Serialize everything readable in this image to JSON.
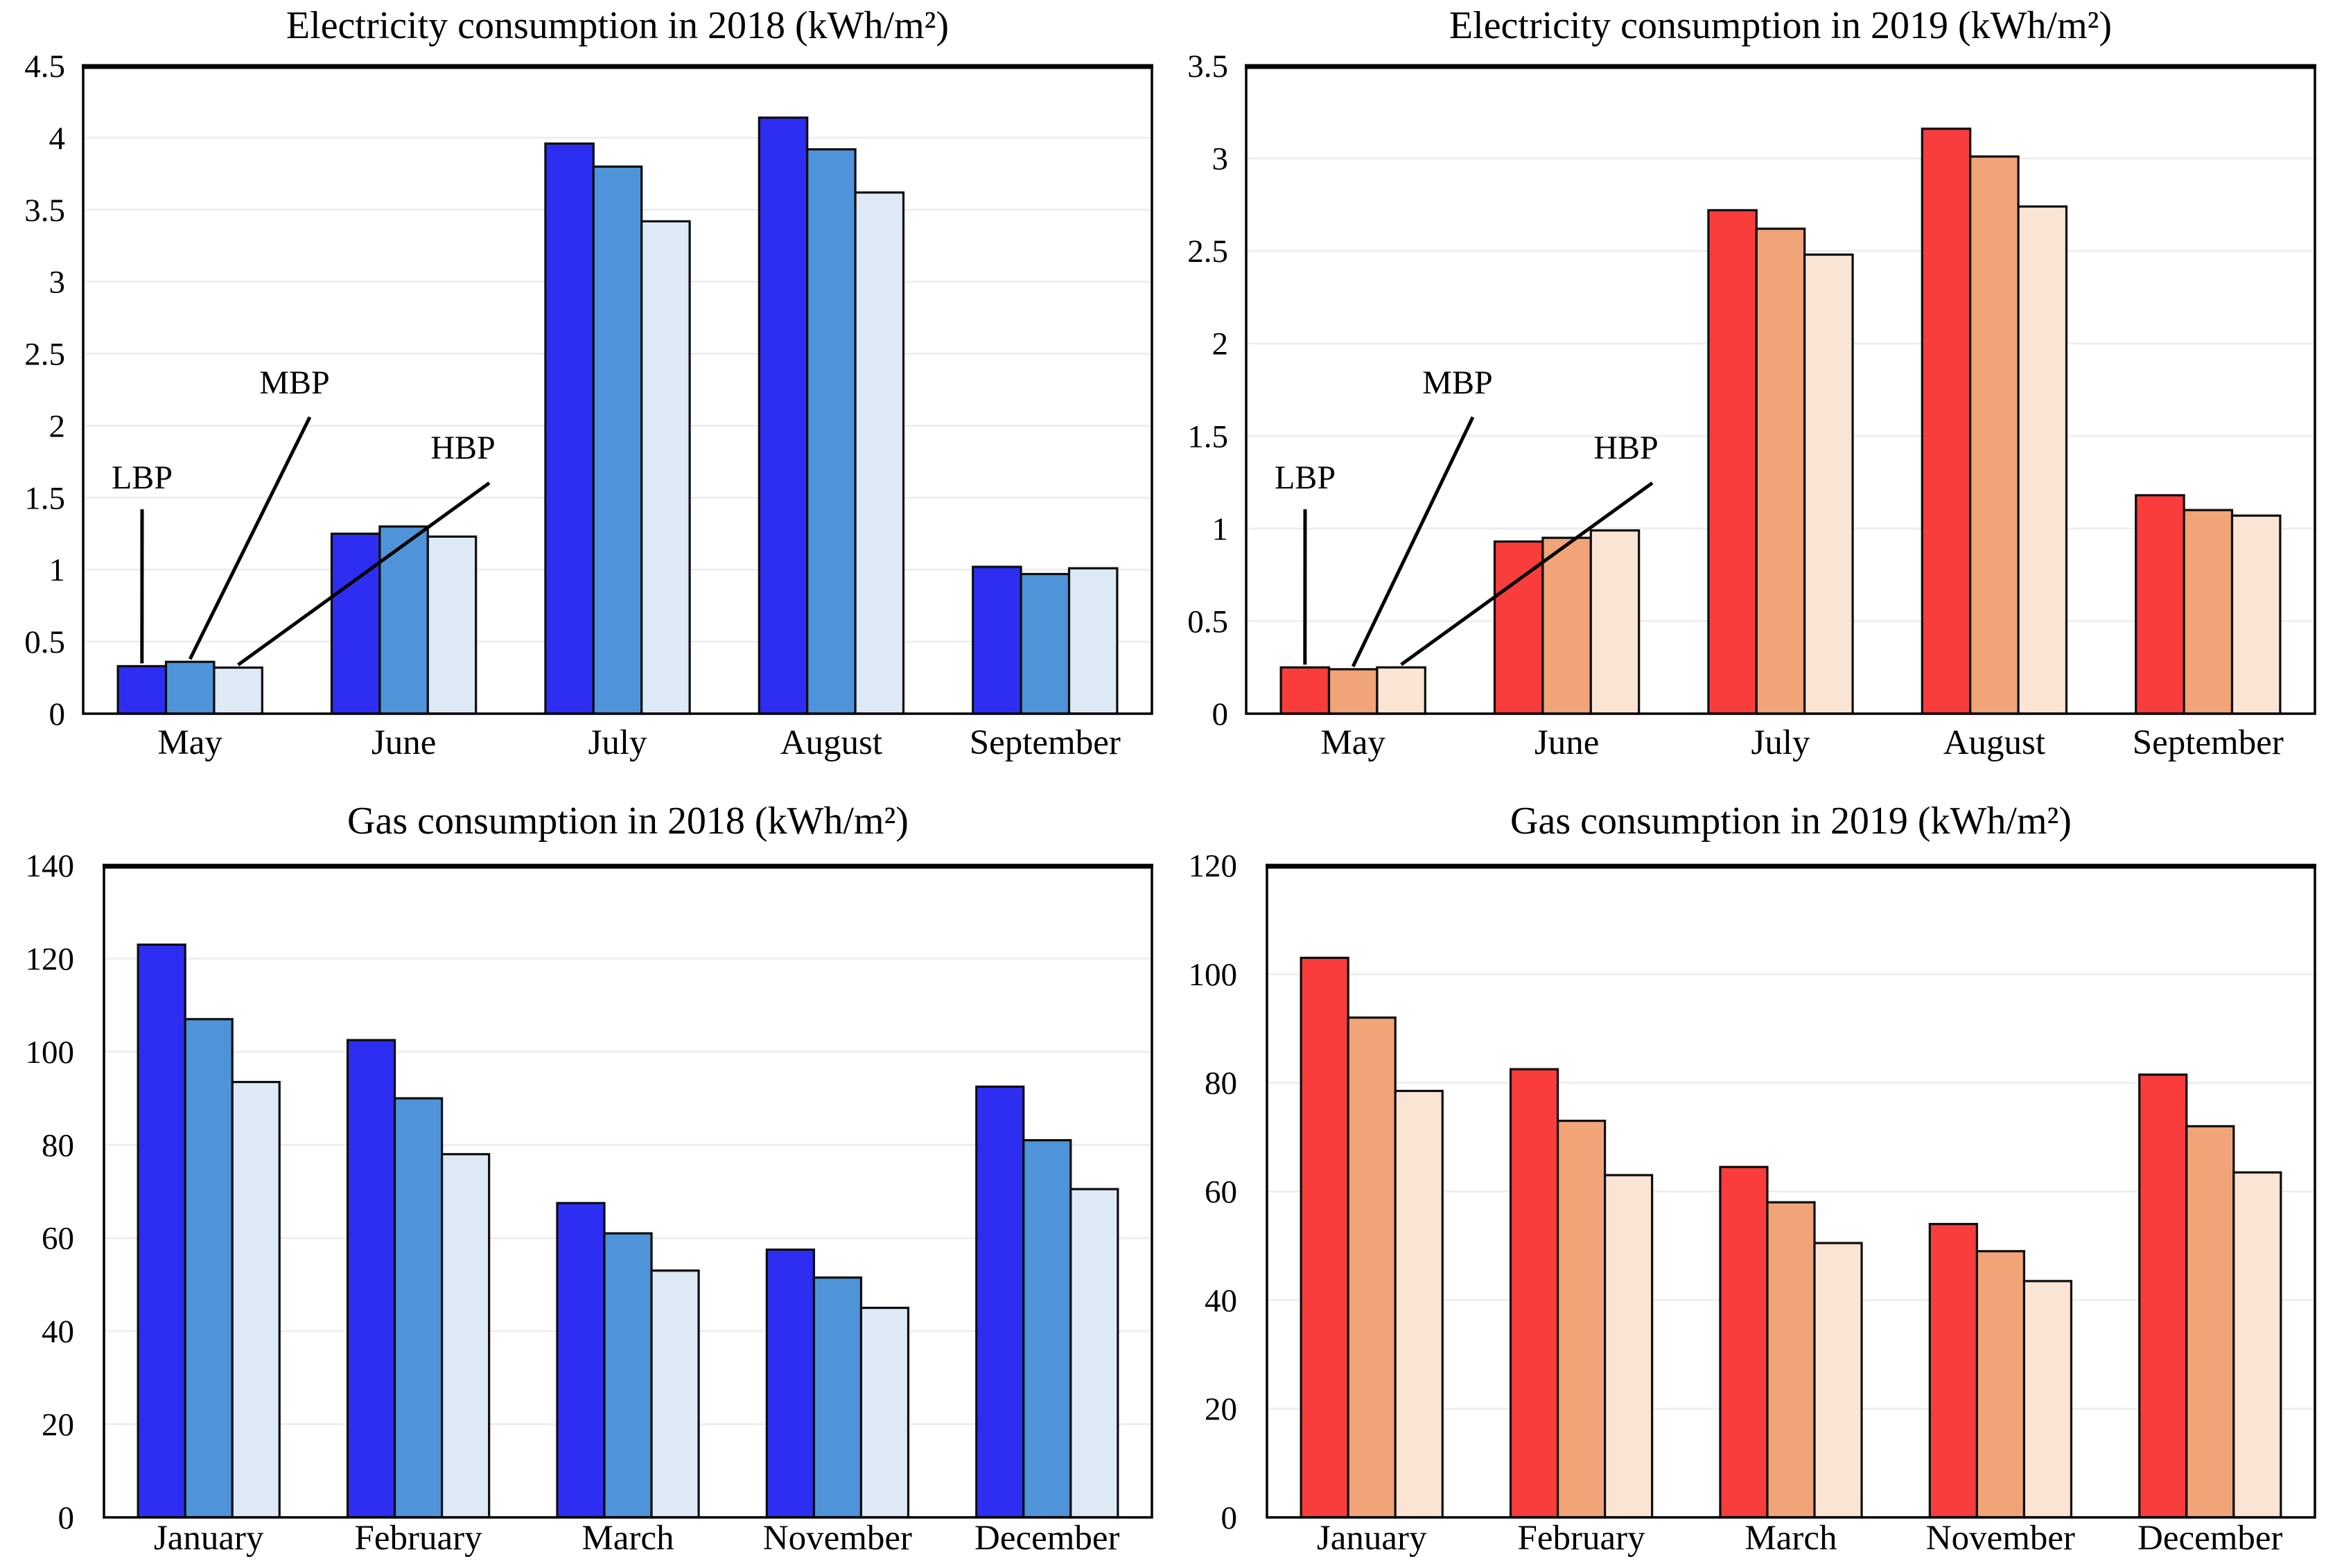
{
  "figure": {
    "background": "#ffffff",
    "series_labels": [
      "LBP",
      "MBP",
      "HBP"
    ]
  },
  "chart_data": [
    {
      "id": "electricity-2018",
      "type": "bar",
      "title": "Electricity consumption in 2018 (kWh/m²)",
      "xlabel": "",
      "ylabel": "",
      "categories": [
        "May",
        "June",
        "July",
        "August",
        "September"
      ],
      "series": [
        {
          "name": "LBP",
          "values": [
            0.33,
            1.25,
            3.96,
            4.14,
            1.02
          ]
        },
        {
          "name": "MBP",
          "values": [
            0.36,
            1.3,
            3.8,
            3.92,
            0.97
          ]
        },
        {
          "name": "HBP",
          "values": [
            0.32,
            1.23,
            3.42,
            3.62,
            1.01
          ]
        }
      ],
      "colors": {
        "LBP": "#2e2ef2",
        "MBP": "#4f94d8",
        "HBP": "#dde9f4"
      },
      "ylim": [
        0,
        4.5
      ],
      "yticks": [
        "0",
        "0.5",
        "1",
        "1.5",
        "2",
        "2.5",
        "3",
        "3.5",
        "4",
        "4.5"
      ],
      "grid": true,
      "legend_position": "annotated-on-plot",
      "annotations": [
        "LBP",
        "MBP",
        "HBP"
      ]
    },
    {
      "id": "electricity-2019",
      "type": "bar",
      "title": "Electricity consumption in 2019 (kWh/m²)",
      "xlabel": "",
      "ylabel": "",
      "categories": [
        "May",
        "June",
        "July",
        "August",
        "September"
      ],
      "series": [
        {
          "name": "LBP",
          "values": [
            0.25,
            0.93,
            2.72,
            3.16,
            1.18
          ]
        },
        {
          "name": "MBP",
          "values": [
            0.24,
            0.95,
            2.62,
            3.01,
            1.1
          ]
        },
        {
          "name": "HBP",
          "values": [
            0.25,
            0.99,
            2.48,
            2.74,
            1.07
          ]
        }
      ],
      "colors": {
        "LBP": "#f93c3c",
        "MBP": "#f0a478",
        "HBP": "#fae4d4"
      },
      "ylim": [
        0,
        3.5
      ],
      "yticks": [
        "0",
        "0.5",
        "1",
        "1.5",
        "2",
        "2.5",
        "3",
        "3.5"
      ],
      "grid": true,
      "legend_position": "annotated-on-plot",
      "annotations": [
        "LBP",
        "MBP",
        "HBP"
      ]
    },
    {
      "id": "gas-2018",
      "type": "bar",
      "title": "Gas consumption in 2018 (kWh/m²)",
      "xlabel": "",
      "ylabel": "",
      "categories": [
        "January",
        "February",
        "March",
        "November",
        "December"
      ],
      "series": [
        {
          "name": "LBP",
          "values": [
            123,
            102.5,
            67.5,
            57.5,
            92.5
          ]
        },
        {
          "name": "MBP",
          "values": [
            107,
            90,
            61,
            51.5,
            81
          ]
        },
        {
          "name": "HBP",
          "values": [
            93.5,
            78,
            53,
            45,
            70.5
          ]
        }
      ],
      "colors": {
        "LBP": "#2e2ef2",
        "MBP": "#4f94d8",
        "HBP": "#dde9f4"
      },
      "ylim": [
        0,
        140
      ],
      "yticks": [
        "0",
        "20",
        "40",
        "60",
        "80",
        "100",
        "120",
        "140"
      ],
      "grid": true,
      "legend_position": "none",
      "annotations": []
    },
    {
      "id": "gas-2019",
      "type": "bar",
      "title": "Gas consumption in 2019 (kWh/m²)",
      "xlabel": "",
      "ylabel": "",
      "categories": [
        "January",
        "February",
        "March",
        "November",
        "December"
      ],
      "series": [
        {
          "name": "LBP",
          "values": [
            103,
            82.5,
            64.5,
            54,
            81.5
          ]
        },
        {
          "name": "MBP",
          "values": [
            92,
            73,
            58,
            49,
            72
          ]
        },
        {
          "name": "HBP",
          "values": [
            78.5,
            63,
            50.5,
            43.5,
            63.5
          ]
        }
      ],
      "colors": {
        "LBP": "#f93c3c",
        "MBP": "#f0a478",
        "HBP": "#fae4d4"
      },
      "ylim": [
        0,
        120
      ],
      "yticks": [
        "0",
        "20",
        "40",
        "60",
        "80",
        "100",
        "120"
      ],
      "grid": true,
      "legend_position": "none",
      "annotations": []
    }
  ]
}
